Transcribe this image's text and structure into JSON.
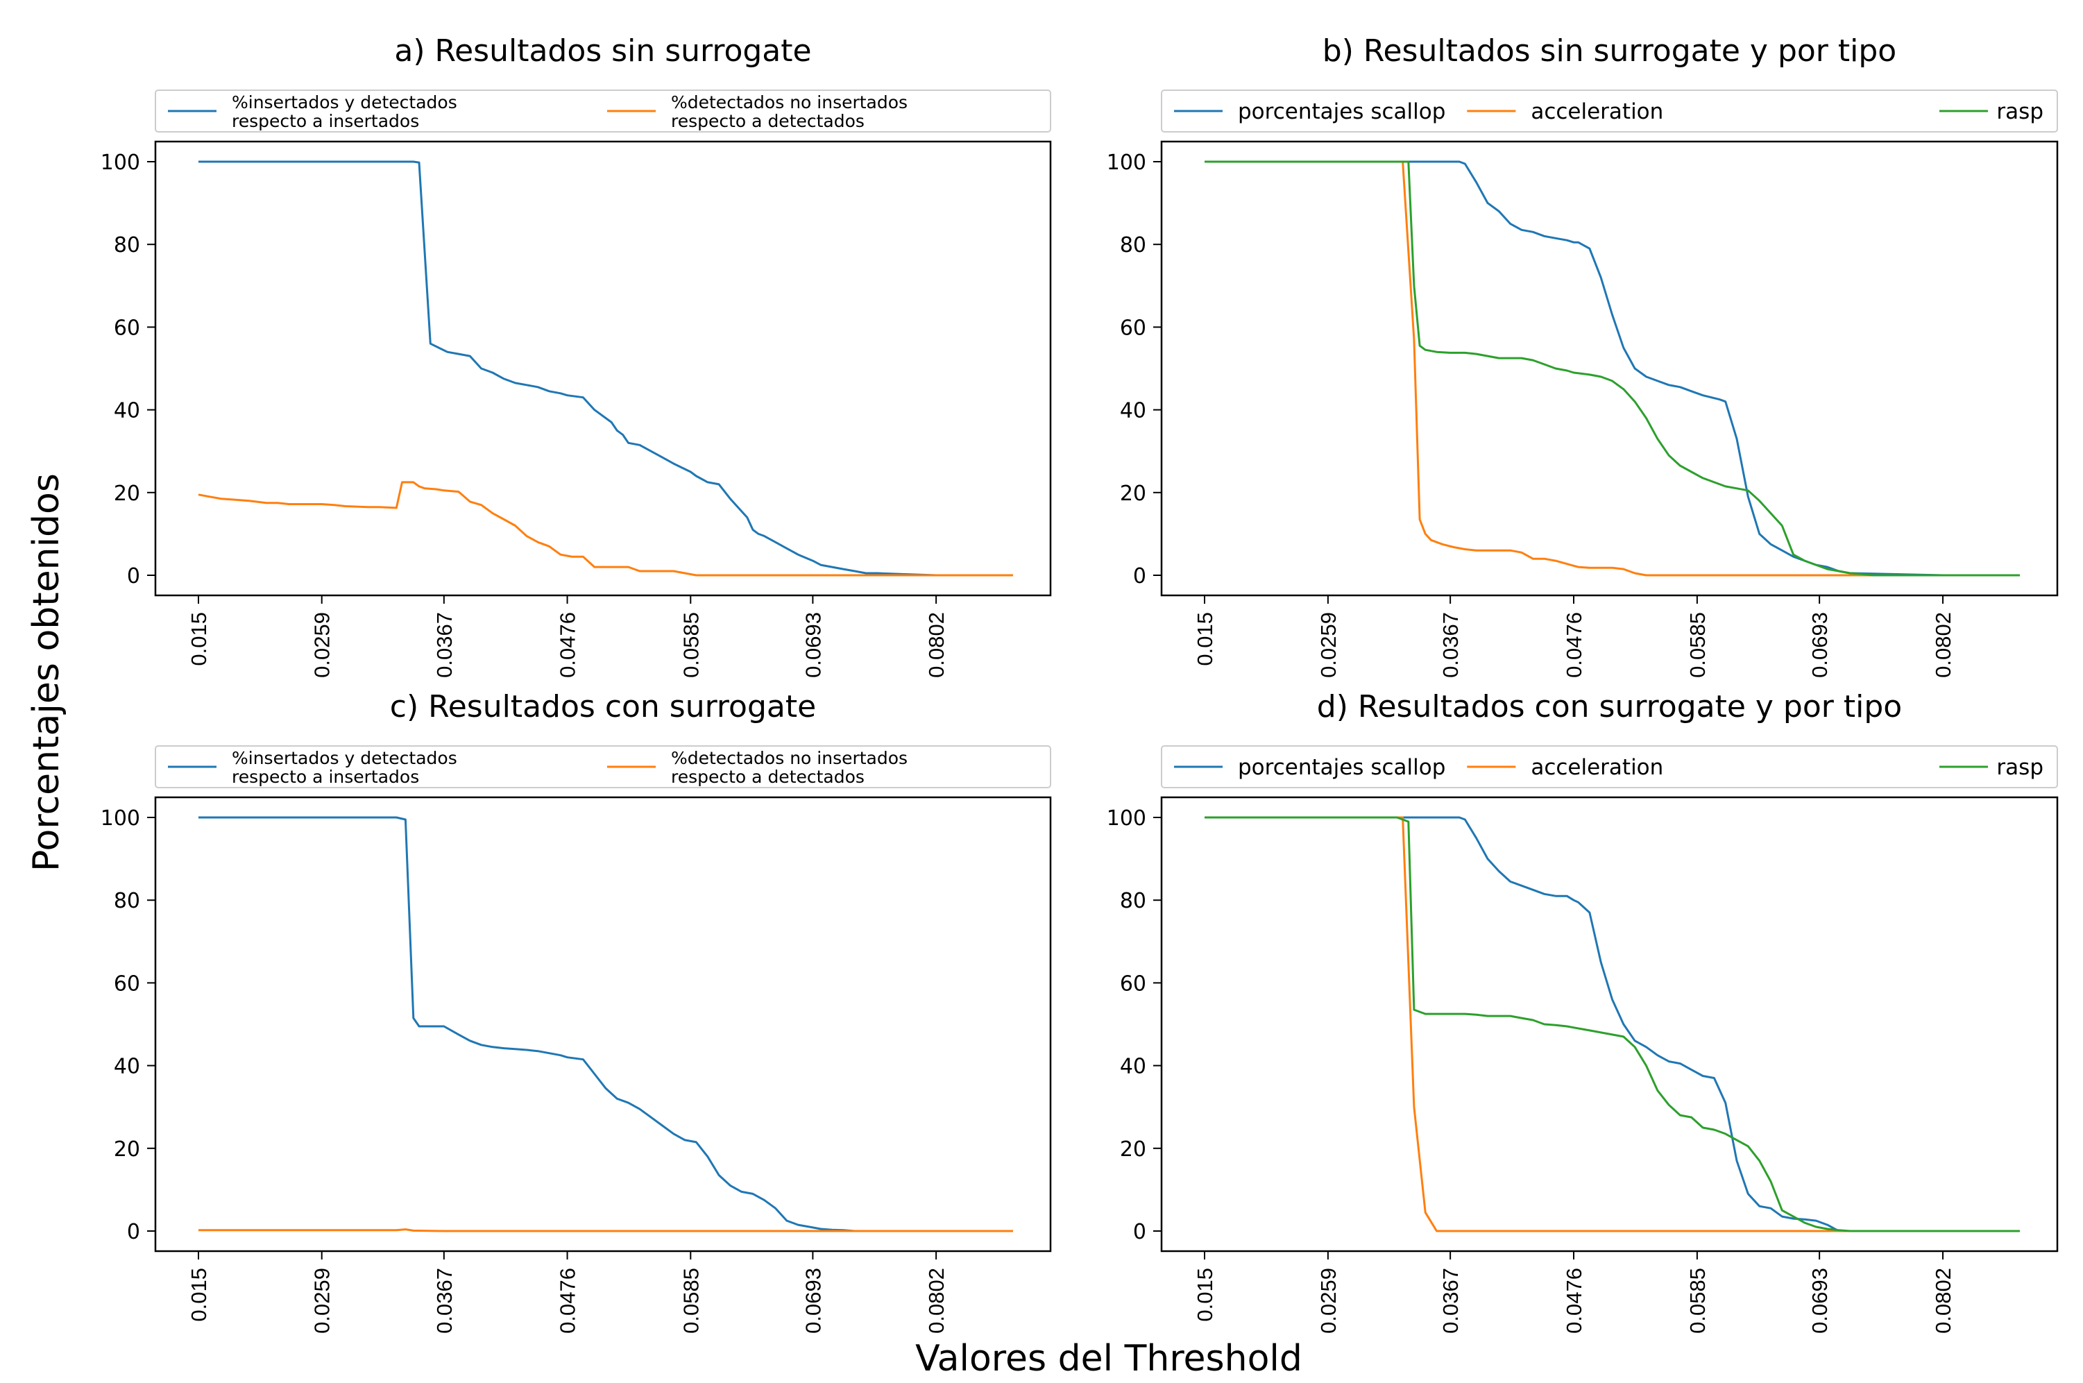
{
  "figure": {
    "supylabel": "Porcentajes obtenidos",
    "supxlabel": "Valores del Threshold"
  },
  "colors": {
    "blue": "#1f77b4",
    "orange": "#ff7f0e",
    "green": "#2ca02c"
  },
  "chart_data": [
    {
      "type": "line",
      "title": "a) Resultados sin surrogate",
      "xlabel": "",
      "ylabel": "",
      "xlim": [
        0.015,
        0.087
      ],
      "ylim": [
        0,
        100
      ],
      "xticks": [
        "0.015",
        "0.0259",
        "0.0367",
        "0.0476",
        "0.0585",
        "0.0693",
        "0.0802"
      ],
      "yticks": [
        "0",
        "20",
        "40",
        "60",
        "80",
        "100"
      ],
      "legend": "top, above plot",
      "series": [
        {
          "name": "%insertados y detectados\nrespecto a insertados",
          "color": "blue",
          "x": [
            0.015,
            0.0185,
            0.0259,
            0.032,
            0.0325,
            0.0333,
            0.034,
            0.0345,
            0.0355,
            0.037,
            0.038,
            0.039,
            0.04,
            0.041,
            0.042,
            0.043,
            0.044,
            0.045,
            0.046,
            0.047,
            0.0476,
            0.049,
            0.05,
            0.0515,
            0.052,
            0.0525,
            0.053,
            0.054,
            0.055,
            0.056,
            0.057,
            0.0585,
            0.059,
            0.06,
            0.061,
            0.062,
            0.0635,
            0.064,
            0.0645,
            0.065,
            0.066,
            0.067,
            0.068,
            0.0693,
            0.07,
            0.071,
            0.072,
            0.073,
            0.074,
            0.075,
            0.077,
            0.0802,
            0.083,
            0.087
          ],
          "y": [
            100,
            100,
            100,
            100,
            100,
            100,
            100,
            99.8,
            56,
            54,
            53.5,
            53,
            50,
            49,
            47.5,
            46.5,
            46,
            45.5,
            44.5,
            44,
            43.5,
            43,
            40,
            37,
            35,
            34,
            32,
            31.5,
            30,
            28.5,
            27,
            25,
            24,
            22.5,
            22,
            18.5,
            14,
            11,
            10,
            9.5,
            8,
            6.5,
            5,
            3.5,
            2.5,
            2,
            1.5,
            1,
            0.5,
            0.5,
            0.3,
            0,
            0,
            0
          ]
        },
        {
          "name": "%detectados no insertados\nrespecto a detectados",
          "color": "orange",
          "x": [
            0.015,
            0.016,
            0.017,
            0.018,
            0.0195,
            0.021,
            0.022,
            0.023,
            0.0245,
            0.025,
            0.0259,
            0.027,
            0.028,
            0.029,
            0.03,
            0.031,
            0.0325,
            0.033,
            0.034,
            0.0345,
            0.035,
            0.036,
            0.0367,
            0.038,
            0.039,
            0.04,
            0.041,
            0.042,
            0.043,
            0.044,
            0.045,
            0.046,
            0.047,
            0.0476,
            0.048,
            0.049,
            0.05,
            0.051,
            0.052,
            0.053,
            0.054,
            0.055,
            0.056,
            0.057,
            0.058,
            0.059,
            0.0595,
            0.06,
            0.0693,
            0.0802,
            0.087
          ],
          "y": [
            19.5,
            19,
            18.5,
            18.3,
            18,
            17.5,
            17.5,
            17.2,
            17.2,
            17.2,
            17.2,
            17,
            16.7,
            16.6,
            16.5,
            16.5,
            16.3,
            22.5,
            22.5,
            21.5,
            21,
            20.8,
            20.5,
            20.2,
            17.8,
            17,
            15,
            13.5,
            12,
            9.5,
            8,
            7,
            5,
            4.7,
            4.5,
            4.5,
            2,
            2,
            2,
            2,
            1,
            1,
            1,
            1,
            0.5,
            0,
            0,
            0,
            0,
            0,
            0
          ]
        }
      ]
    },
    {
      "type": "line",
      "title": "b) Resultados sin surrogate y por tipo",
      "xlabel": "",
      "ylabel": "",
      "xlim": [
        0.015,
        0.087
      ],
      "ylim": [
        0,
        100
      ],
      "xticks": [
        "0.015",
        "0.0259",
        "0.0367",
        "0.0476",
        "0.0585",
        "0.0693",
        "0.0802"
      ],
      "yticks": [
        "0",
        "20",
        "40",
        "60",
        "80",
        "100"
      ],
      "legend": "top, above plot",
      "series": [
        {
          "name": "porcentajes scallop",
          "color": "blue",
          "x": [
            0.015,
            0.0259,
            0.032,
            0.0367,
            0.0375,
            0.038,
            0.039,
            0.04,
            0.041,
            0.042,
            0.043,
            0.044,
            0.045,
            0.046,
            0.047,
            0.0476,
            0.048,
            0.049,
            0.05,
            0.051,
            0.052,
            0.053,
            0.054,
            0.055,
            0.056,
            0.057,
            0.058,
            0.059,
            0.0605,
            0.061,
            0.062,
            0.063,
            0.064,
            0.065,
            0.066,
            0.067,
            0.068,
            0.069,
            0.07,
            0.071,
            0.072,
            0.0802,
            0.087
          ],
          "y": [
            100,
            100,
            100,
            100,
            100,
            99.5,
            95,
            90,
            88,
            85,
            83.5,
            83,
            82,
            81.5,
            81,
            80.5,
            80.5,
            79,
            72,
            63,
            55,
            50,
            48,
            47,
            46,
            45.5,
            44.5,
            43.5,
            42.5,
            42,
            33,
            19,
            10,
            7.5,
            6,
            4.5,
            3.5,
            2.5,
            2,
            1,
            0.5,
            0,
            0
          ]
        },
        {
          "name": "acceleration",
          "color": "orange",
          "x": [
            0.015,
            0.0259,
            0.0325,
            0.0335,
            0.034,
            0.0345,
            0.035,
            0.036,
            0.037,
            0.038,
            0.039,
            0.04,
            0.041,
            0.042,
            0.043,
            0.044,
            0.045,
            0.046,
            0.0476,
            0.048,
            0.049,
            0.05,
            0.051,
            0.052,
            0.053,
            0.054,
            0.0585,
            0.0693,
            0.0802,
            0.087
          ],
          "y": [
            100,
            100,
            100,
            57,
            13.5,
            10,
            8.5,
            7.5,
            6.8,
            6.3,
            6,
            6,
            6,
            6,
            5.5,
            4,
            4,
            3.5,
            2.3,
            2,
            1.8,
            1.8,
            1.8,
            1.5,
            0.5,
            0,
            0,
            0,
            0,
            0
          ]
        },
        {
          "name": "rasp",
          "color": "green",
          "x": [
            0.015,
            0.0259,
            0.032,
            0.0325,
            0.033,
            0.0335,
            0.034,
            0.0345,
            0.0355,
            0.0367,
            0.038,
            0.039,
            0.04,
            0.041,
            0.042,
            0.043,
            0.044,
            0.045,
            0.046,
            0.047,
            0.0476,
            0.049,
            0.05,
            0.051,
            0.052,
            0.053,
            0.054,
            0.055,
            0.056,
            0.057,
            0.058,
            0.059,
            0.06,
            0.061,
            0.062,
            0.063,
            0.064,
            0.065,
            0.066,
            0.067,
            0.068,
            0.069,
            0.07,
            0.071,
            0.072,
            0.073,
            0.074,
            0.075,
            0.0802,
            0.087
          ],
          "y": [
            100,
            100,
            100,
            100,
            100,
            70,
            55.5,
            54.5,
            54,
            53.8,
            53.8,
            53.5,
            53,
            52.5,
            52.5,
            52.5,
            52,
            51,
            50,
            49.5,
            49,
            48.5,
            48,
            47,
            45,
            42,
            38,
            33,
            29,
            26.5,
            25,
            23.5,
            22.5,
            21.5,
            21,
            20.5,
            18,
            15,
            12,
            5,
            3.5,
            2.5,
            1.5,
            1,
            0.5,
            0.3,
            0,
            0,
            0,
            0
          ]
        }
      ]
    },
    {
      "type": "line",
      "title": "c) Resultados con surrogate",
      "xlabel": "",
      "ylabel": "",
      "xlim": [
        0.015,
        0.087
      ],
      "ylim": [
        0,
        100
      ],
      "xticks": [
        "0.015",
        "0.0259",
        "0.0367",
        "0.0476",
        "0.0585",
        "0.0693",
        "0.0802"
      ],
      "yticks": [
        "0",
        "20",
        "40",
        "60",
        "80",
        "100"
      ],
      "legend": "top, above plot",
      "series": [
        {
          "name": "%insertados y detectados\nrespecto a insertados",
          "color": "blue",
          "x": [
            0.015,
            0.0259,
            0.032,
            0.0325,
            0.0333,
            0.034,
            0.0345,
            0.0355,
            0.0367,
            0.038,
            0.039,
            0.04,
            0.041,
            0.042,
            0.043,
            0.044,
            0.045,
            0.046,
            0.047,
            0.0476,
            0.049,
            0.05,
            0.051,
            0.052,
            0.053,
            0.054,
            0.055,
            0.056,
            0.057,
            0.058,
            0.059,
            0.06,
            0.061,
            0.062,
            0.063,
            0.064,
            0.065,
            0.066,
            0.067,
            0.068,
            0.069,
            0.07,
            0.071,
            0.072,
            0.073,
            0.074,
            0.075,
            0.076,
            0.077,
            0.0802,
            0.087
          ],
          "y": [
            100,
            100,
            100,
            100,
            99.5,
            51.5,
            49.5,
            49.5,
            49.5,
            47.5,
            46,
            45,
            44.5,
            44.2,
            44,
            43.8,
            43.5,
            43,
            42.5,
            42,
            41.5,
            38,
            34.5,
            32,
            31,
            29.5,
            27.5,
            25.5,
            23.5,
            22,
            21.5,
            18,
            13.5,
            11,
            9.5,
            9,
            7.5,
            5.5,
            2.5,
            1.5,
            1,
            0.5,
            0.3,
            0.2,
            0,
            0,
            0,
            0,
            0,
            0,
            0
          ]
        },
        {
          "name": "%detectados no insertados\nrespecto a detectados",
          "color": "orange",
          "x": [
            0.015,
            0.0259,
            0.0325,
            0.0333,
            0.034,
            0.0367,
            0.0476,
            0.0585,
            0.0693,
            0.0802,
            0.087
          ],
          "y": [
            0.2,
            0.2,
            0.2,
            0.4,
            0.1,
            0,
            0,
            0,
            0,
            0,
            0
          ]
        }
      ]
    },
    {
      "type": "line",
      "title": "d) Resultados con surrogate y por tipo",
      "xlabel": "",
      "ylabel": "",
      "xlim": [
        0.015,
        0.087
      ],
      "ylim": [
        0,
        100
      ],
      "xticks": [
        "0.015",
        "0.0259",
        "0.0367",
        "0.0476",
        "0.0585",
        "0.0693",
        "0.0802"
      ],
      "yticks": [
        "0",
        "20",
        "40",
        "60",
        "80",
        "100"
      ],
      "legend": "top, above plot",
      "series": [
        {
          "name": "porcentajes scallop",
          "color": "blue",
          "x": [
            0.015,
            0.0259,
            0.032,
            0.0367,
            0.0375,
            0.038,
            0.039,
            0.04,
            0.041,
            0.042,
            0.043,
            0.044,
            0.045,
            0.046,
            0.047,
            0.0476,
            0.048,
            0.049,
            0.05,
            0.051,
            0.052,
            0.053,
            0.054,
            0.055,
            0.056,
            0.057,
            0.058,
            0.059,
            0.06,
            0.061,
            0.062,
            0.063,
            0.064,
            0.065,
            0.066,
            0.067,
            0.068,
            0.069,
            0.07,
            0.071,
            0.0802,
            0.087
          ],
          "y": [
            100,
            100,
            100,
            100,
            100,
            99.5,
            95,
            90,
            87,
            84.5,
            83.5,
            82.5,
            81.5,
            81,
            81,
            80,
            79.5,
            77,
            65,
            56,
            50,
            46,
            44.5,
            42.5,
            41,
            40.5,
            39,
            37.5,
            37,
            31,
            17,
            9,
            6,
            5.5,
            3.5,
            3,
            2.8,
            2.5,
            1.5,
            0,
            0,
            0
          ]
        },
        {
          "name": "acceleration",
          "color": "orange",
          "x": [
            0.015,
            0.0259,
            0.0325,
            0.0335,
            0.0345,
            0.0355,
            0.0367,
            0.0476,
            0.0585,
            0.0693,
            0.0802,
            0.087
          ],
          "y": [
            100,
            100,
            100,
            30,
            4.5,
            0,
            0,
            0,
            0,
            0,
            0,
            0
          ]
        },
        {
          "name": "rasp",
          "color": "green",
          "x": [
            0.015,
            0.0259,
            0.032,
            0.0325,
            0.033,
            0.0335,
            0.0345,
            0.0355,
            0.0367,
            0.038,
            0.039,
            0.04,
            0.041,
            0.042,
            0.043,
            0.044,
            0.045,
            0.046,
            0.047,
            0.0476,
            0.049,
            0.05,
            0.051,
            0.052,
            0.053,
            0.054,
            0.055,
            0.056,
            0.057,
            0.058,
            0.059,
            0.06,
            0.061,
            0.062,
            0.063,
            0.064,
            0.065,
            0.066,
            0.067,
            0.068,
            0.069,
            0.07,
            0.071,
            0.072,
            0.0802,
            0.087
          ],
          "y": [
            100,
            100,
            100,
            99.5,
            99,
            53.5,
            52.5,
            52.5,
            52.5,
            52.5,
            52.3,
            52,
            52,
            52,
            51.5,
            51,
            50,
            49.8,
            49.5,
            49.2,
            48.5,
            48,
            47.5,
            47,
            44.5,
            40,
            34,
            30.5,
            28,
            27.5,
            25,
            24.5,
            23.5,
            22,
            20.5,
            17,
            12,
            5,
            3.5,
            2,
            1,
            0.5,
            0.2,
            0,
            0,
            0
          ]
        }
      ]
    }
  ]
}
